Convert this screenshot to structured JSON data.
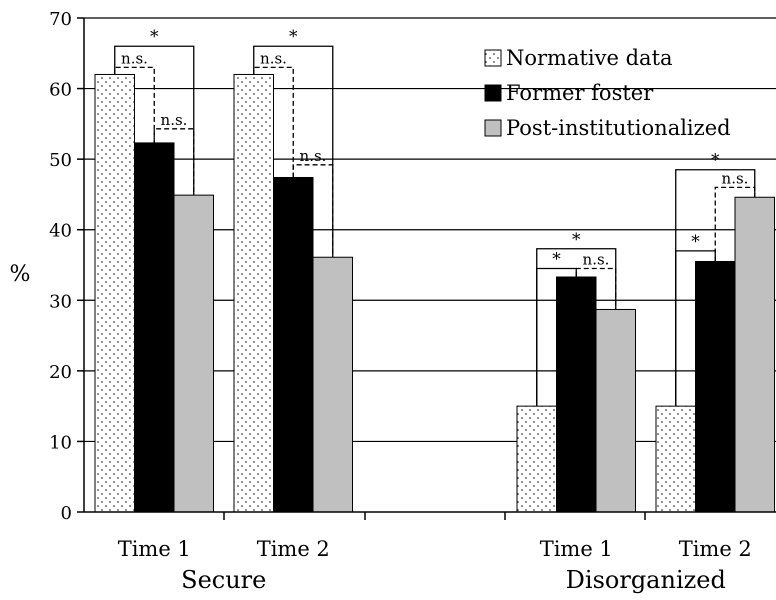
{
  "chart_data": {
    "type": "bar",
    "ylabel": "%",
    "ylim": [
      0,
      70
    ],
    "yticks": [
      "0",
      "10",
      "20",
      "30",
      "40",
      "50",
      "60",
      "70"
    ],
    "grid": true,
    "legend_position": "top-right",
    "groups": [
      {
        "label": "Secure",
        "categories": [
          "Time 1",
          "Time 2"
        ]
      },
      {
        "label": "Disorganized",
        "categories": [
          "Time 1",
          "Time 2"
        ]
      }
    ],
    "series": [
      {
        "name": "Normative data",
        "pattern": "dotted",
        "color": "#ffffff",
        "values": [
          62,
          62,
          15,
          15
        ]
      },
      {
        "name": "Former foster",
        "pattern": "solid",
        "color": "#000000",
        "values": [
          52.3,
          47.4,
          33.3,
          35.5
        ]
      },
      {
        "name": "Post-institutionalized",
        "pattern": "solid",
        "color": "#c0c0c0",
        "values": [
          44.9,
          36.1,
          28.7,
          44.6
        ]
      }
    ],
    "annotations": [
      {
        "cluster": 0,
        "from": 0,
        "to": 2,
        "label": "*",
        "style": "solid",
        "y": 66
      },
      {
        "cluster": 0,
        "from": 0,
        "to": 1,
        "label": "n.s.",
        "style": "dashed",
        "y": 63
      },
      {
        "cluster": 0,
        "from": 1,
        "to": 2,
        "label": "n.s.",
        "style": "dashed",
        "y": 54.3
      },
      {
        "cluster": 1,
        "from": 0,
        "to": 2,
        "label": "*",
        "style": "solid",
        "y": 66
      },
      {
        "cluster": 1,
        "from": 0,
        "to": 1,
        "label": "n.s.",
        "style": "dashed",
        "y": 63
      },
      {
        "cluster": 1,
        "from": 1,
        "to": 2,
        "label": "n.s.",
        "style": "dashed",
        "y": 49.2
      },
      {
        "cluster": 2,
        "from": 0,
        "to": 2,
        "label": "*",
        "style": "solid",
        "y": 37.3
      },
      {
        "cluster": 2,
        "from": 0,
        "to": 1,
        "label": "*",
        "style": "solid",
        "y": 34.5
      },
      {
        "cluster": 2,
        "from": 1,
        "to": 2,
        "label": "n.s.",
        "style": "dashed",
        "y": 34.5
      },
      {
        "cluster": 3,
        "from": 0,
        "to": 2,
        "label": "*",
        "style": "solid",
        "y": 48.5
      },
      {
        "cluster": 3,
        "from": 0,
        "to": 1,
        "label": "*",
        "style": "solid",
        "y": 37
      },
      {
        "cluster": 3,
        "from": 1,
        "to": 2,
        "label": "n.s.",
        "style": "dashed",
        "y": 46
      }
    ]
  }
}
